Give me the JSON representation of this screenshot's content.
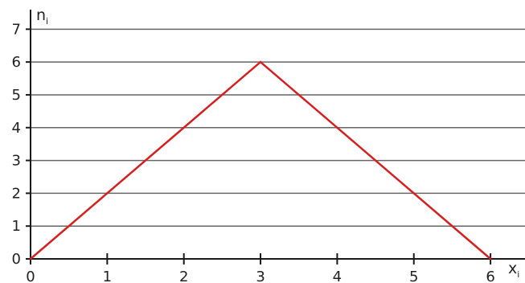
{
  "chart_data": {
    "type": "line",
    "title": "",
    "xlabel": "x",
    "xlabel_sub": "i",
    "ylabel": "n",
    "ylabel_sub": "i",
    "x": [
      0,
      3,
      6
    ],
    "series": [
      {
        "values": [
          0,
          6,
          0
        ],
        "color": "#d62020"
      }
    ],
    "xticks": [
      0,
      1,
      2,
      3,
      4,
      5,
      6
    ],
    "yticks": [
      0,
      1,
      2,
      3,
      4,
      5,
      6,
      7
    ],
    "xlim": [
      0,
      6.45
    ],
    "ylim": [
      0,
      7.4
    ],
    "grid": {
      "horizontal": true,
      "vertical": false
    },
    "legend": "none",
    "colors": {
      "axis": "#1a1a1a",
      "grid": "#666666",
      "line": "#d62020"
    }
  }
}
